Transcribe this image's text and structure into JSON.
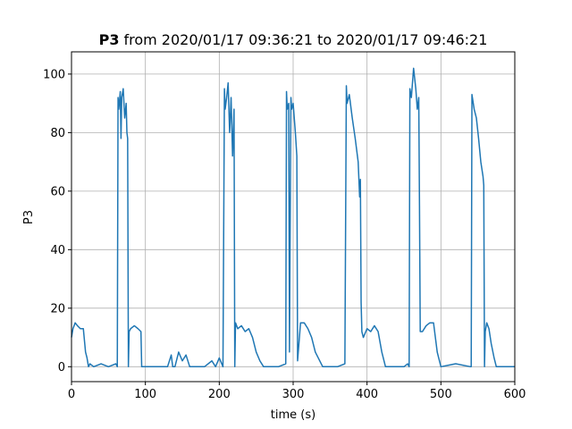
{
  "chart_data": {
    "type": "line",
    "title_bold": "P3",
    "title": "from 2020/01/17 09:36:21 to 2020/01/17 09:46:21",
    "x_label": "time (s)",
    "y_label": "P3",
    "xlim": [
      0,
      600
    ],
    "ylim": [
      -5.1,
      107.6
    ],
    "xticks": [
      0,
      100,
      200,
      300,
      400,
      500,
      600
    ],
    "yticks": [
      0,
      20,
      40,
      60,
      80,
      100
    ],
    "grid": true,
    "x": [
      0,
      2,
      5,
      8,
      12,
      16,
      19,
      21,
      23,
      25,
      30,
      40,
      50,
      60,
      62,
      63,
      64,
      66,
      67,
      68,
      70,
      72,
      74,
      75,
      76,
      77,
      78,
      80,
      85,
      90,
      94,
      95,
      100,
      130,
      135,
      137,
      140,
      145,
      150,
      155,
      160,
      180,
      190,
      195,
      200,
      205,
      207,
      208,
      210,
      212,
      214,
      216,
      218,
      220,
      221,
      222,
      225,
      230,
      235,
      240,
      245,
      250,
      255,
      260,
      280,
      290,
      291,
      292,
      294,
      295,
      297,
      298,
      300,
      303,
      305,
      306,
      310,
      315,
      320,
      325,
      330,
      340,
      360,
      370,
      372,
      373,
      376,
      380,
      384,
      388,
      390,
      391,
      392,
      393,
      395,
      400,
      405,
      410,
      415,
      420,
      425,
      450,
      455,
      457,
      458,
      460,
      463,
      466,
      468,
      470,
      471,
      472,
      475,
      480,
      485,
      490,
      495,
      500,
      520,
      540,
      541,
      542,
      545,
      548,
      551,
      554,
      557,
      558,
      559,
      560,
      562,
      565,
      568,
      572,
      575,
      600
    ],
    "series": [
      {
        "name": "P3",
        "color": "#1f77b4",
        "values": [
          10,
          13,
          15,
          14,
          13,
          13,
          5,
          3,
          0,
          1,
          0,
          1,
          0,
          1,
          0,
          92,
          88,
          94,
          78,
          92,
          95,
          85,
          90,
          80,
          78,
          0,
          12,
          13,
          14,
          13,
          12,
          0,
          0,
          0,
          4,
          0,
          0,
          5,
          2,
          4,
          0,
          0,
          2,
          0,
          3,
          0,
          95,
          88,
          92,
          97,
          80,
          92,
          72,
          88,
          0,
          15,
          13,
          14,
          12,
          13,
          10,
          5,
          2,
          0,
          0,
          1,
          94,
          88,
          90,
          5,
          92,
          88,
          90,
          80,
          72,
          2,
          15,
          15,
          13,
          10,
          5,
          0,
          0,
          1,
          96,
          90,
          93,
          85,
          78,
          70,
          58,
          64,
          22,
          12,
          10,
          13,
          12,
          14,
          12,
          5,
          0,
          0,
          1,
          0,
          95,
          92,
          102,
          95,
          88,
          92,
          55,
          12,
          12,
          14,
          15,
          15,
          5,
          0,
          1,
          0,
          0,
          93,
          88,
          85,
          78,
          70,
          65,
          62,
          0,
          12,
          15,
          13,
          8,
          3,
          0,
          0
        ]
      }
    ]
  }
}
